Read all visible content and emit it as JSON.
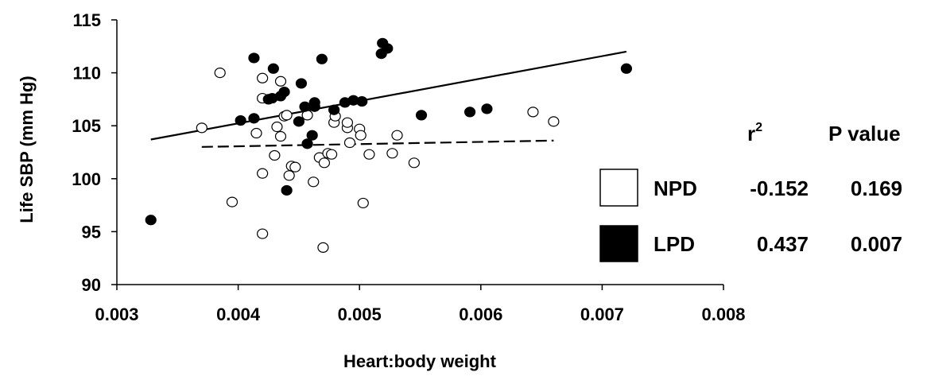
{
  "chart_data": {
    "type": "scatter",
    "xlabel": "Heart:body weight",
    "ylabel": "Life SBP (mm Hg)",
    "xlim": [
      0.003,
      0.008
    ],
    "ylim": [
      90,
      115
    ],
    "xticks": [
      "0.003",
      "0.004",
      "0.005",
      "0.006",
      "0.007",
      "0.008"
    ],
    "yticks": [
      "90",
      "95",
      "100",
      "105",
      "110",
      "115"
    ],
    "series": [
      {
        "name": "NPD",
        "marker": "open-circle",
        "color": "#ffffff",
        "points": [
          [
            0.0037,
            104.8
          ],
          [
            0.00385,
            110.0
          ],
          [
            0.00395,
            97.8
          ],
          [
            0.00415,
            104.3
          ],
          [
            0.0042,
            109.5
          ],
          [
            0.0042,
            107.6
          ],
          [
            0.0042,
            100.5
          ],
          [
            0.0042,
            94.8
          ],
          [
            0.0043,
            102.2
          ],
          [
            0.00432,
            104.9
          ],
          [
            0.00435,
            104.0
          ],
          [
            0.00435,
            109.2
          ],
          [
            0.00438,
            105.9
          ],
          [
            0.0044,
            106.0
          ],
          [
            0.00442,
            100.3
          ],
          [
            0.00444,
            101.2
          ],
          [
            0.00447,
            101.1
          ],
          [
            0.00457,
            106.0
          ],
          [
            0.00462,
            99.7
          ],
          [
            0.00467,
            102.0
          ],
          [
            0.0047,
            93.5
          ],
          [
            0.00471,
            101.5
          ],
          [
            0.00474,
            102.4
          ],
          [
            0.00477,
            102.3
          ],
          [
            0.00479,
            105.3
          ],
          [
            0.0048,
            105.9
          ],
          [
            0.0049,
            104.8
          ],
          [
            0.0049,
            105.3
          ],
          [
            0.00492,
            103.4
          ],
          [
            0.005,
            104.7
          ],
          [
            0.00501,
            104.1
          ],
          [
            0.00503,
            97.7
          ],
          [
            0.00508,
            102.3
          ],
          [
            0.00527,
            102.4
          ],
          [
            0.00531,
            104.1
          ],
          [
            0.00545,
            101.5
          ],
          [
            0.00643,
            106.3
          ],
          [
            0.0066,
            105.4
          ]
        ],
        "trend": {
          "x": [
            0.0037,
            0.0066
          ],
          "y": [
            103.0,
            103.6
          ],
          "style": "dashed"
        }
      },
      {
        "name": "LPD",
        "marker": "filled-circle",
        "color": "#000000",
        "points": [
          [
            0.00328,
            96.1
          ],
          [
            0.00402,
            105.5
          ],
          [
            0.00413,
            105.7
          ],
          [
            0.00413,
            111.4
          ],
          [
            0.00425,
            107.5
          ],
          [
            0.00428,
            107.6
          ],
          [
            0.00429,
            110.4
          ],
          [
            0.00435,
            107.8
          ],
          [
            0.00438,
            108.2
          ],
          [
            0.0044,
            98.9
          ],
          [
            0.0045,
            105.4
          ],
          [
            0.00452,
            109.0
          ],
          [
            0.00455,
            106.8
          ],
          [
            0.00457,
            103.3
          ],
          [
            0.00461,
            104.1
          ],
          [
            0.00463,
            107.2
          ],
          [
            0.00463,
            106.8
          ],
          [
            0.00469,
            111.3
          ],
          [
            0.00479,
            106.5
          ],
          [
            0.00488,
            107.2
          ],
          [
            0.00495,
            107.4
          ],
          [
            0.00502,
            107.3
          ],
          [
            0.00518,
            111.8
          ],
          [
            0.00519,
            112.8
          ],
          [
            0.00523,
            112.3
          ],
          [
            0.00551,
            106.0
          ],
          [
            0.00591,
            106.3
          ],
          [
            0.00605,
            106.6
          ],
          [
            0.0072,
            110.4
          ]
        ],
        "trend": {
          "x": [
            0.00328,
            0.0072
          ],
          "y": [
            103.7,
            112.0
          ],
          "style": "solid"
        }
      }
    ],
    "stats_table": {
      "headers": {
        "r2_base": "r",
        "r2_sup": "2",
        "p": "P value"
      },
      "rows": [
        {
          "label": "NPD",
          "swatch": "#ffffff",
          "r2": "-0.152",
          "p": "0.169"
        },
        {
          "label": "LPD",
          "swatch": "#000000",
          "r2": "0.437",
          "p": "0.007"
        }
      ]
    }
  }
}
